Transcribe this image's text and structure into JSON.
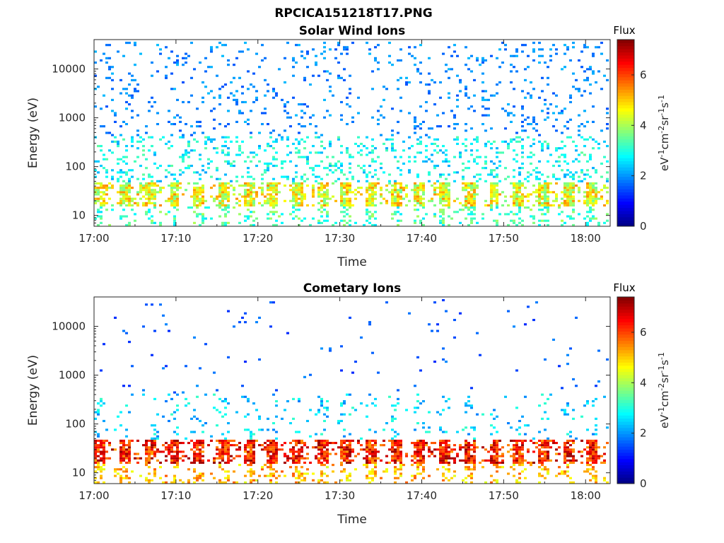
{
  "page_title": "RPCICA151218T17.PNG",
  "chart_data": [
    {
      "type": "heatmap",
      "title": "Solar Wind Ions",
      "xlabel": "Time",
      "ylabel": "Energy (eV)",
      "y_scale": "log",
      "x_ticks": [
        "17:00",
        "17:10",
        "17:20",
        "17:30",
        "17:40",
        "17:50",
        "18:00"
      ],
      "x_range": [
        "17:00",
        "18:03"
      ],
      "y_ticks": [
        "10",
        "100",
        "1000",
        "10000"
      ],
      "ylim": [
        6,
        40000
      ],
      "colorbar": {
        "label": "Flux",
        "unit": "eV-1cm-2sr-1s-1",
        "ticks": [
          "0",
          "2",
          "4",
          "6"
        ],
        "range": [
          0,
          7.4
        ],
        "colormap": "jet"
      },
      "features": {
        "dominant_low_energy_band_eV": [
          15,
          45
        ],
        "low_energy_band_flux": 4.5,
        "sparse_high_energy_flux": 1.5,
        "band_period_minutes": 3
      }
    },
    {
      "type": "heatmap",
      "title": "Cometary Ions",
      "xlabel": "Time",
      "ylabel": "Energy (eV)",
      "y_scale": "log",
      "x_ticks": [
        "17:00",
        "17:10",
        "17:20",
        "17:30",
        "17:40",
        "17:50",
        "18:00"
      ],
      "x_range": [
        "17:00",
        "18:03"
      ],
      "y_ticks": [
        "10",
        "100",
        "1000",
        "10000"
      ],
      "ylim": [
        6,
        40000
      ],
      "colorbar": {
        "label": "Flux",
        "unit": "eV-1cm-2sr-1s-1",
        "ticks": [
          "0",
          "2",
          "4",
          "6"
        ],
        "range": [
          0,
          7.4
        ],
        "colormap": "jet"
      },
      "features": {
        "dominant_low_energy_band_eV": [
          15,
          45
        ],
        "low_energy_band_flux": 6.3,
        "sparse_high_energy_flux": 1.2,
        "band_period_minutes": 3
      }
    }
  ]
}
